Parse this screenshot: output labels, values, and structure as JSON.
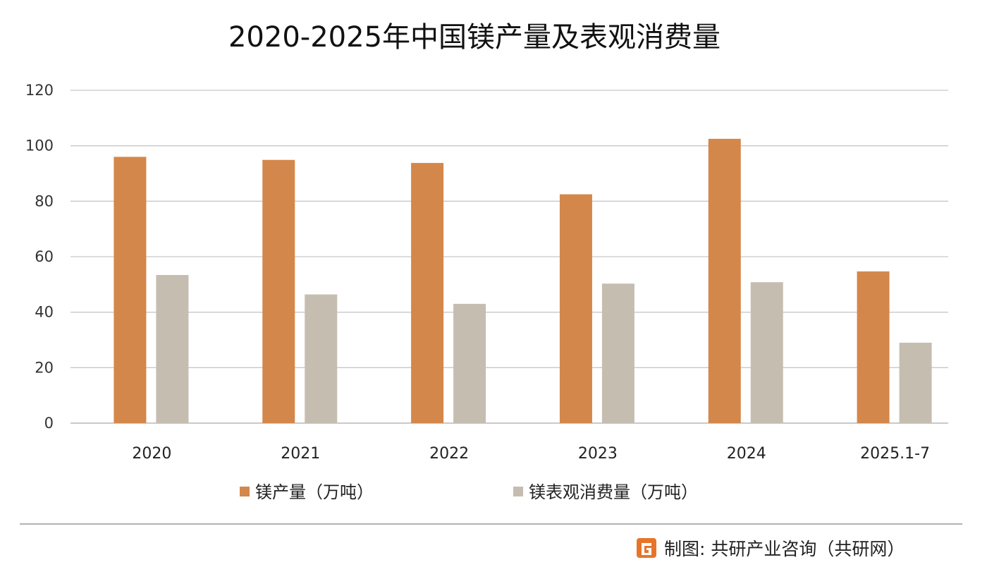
{
  "chart_data": {
    "type": "bar",
    "title": "2020-2025年中国镁产量及表观消费量",
    "categories": [
      "2020",
      "2021",
      "2022",
      "2023",
      "2024",
      "2025.1-7"
    ],
    "series": [
      {
        "name": "镁产量（万吨）",
        "color": "#D4874A",
        "values": [
          96.0,
          94.9,
          93.8,
          82.5,
          102.5,
          54.7
        ]
      },
      {
        "name": "镁表观消费量（万吨）",
        "color": "#C6BDB1",
        "values": [
          53.4,
          46.4,
          43.0,
          50.3,
          50.8,
          29.0
        ]
      }
    ],
    "ylim": [
      0,
      120
    ],
    "yticks": [
      0,
      20,
      40,
      60,
      80,
      100,
      120
    ],
    "grid": true,
    "legend": "bottom-center",
    "xlabel": "",
    "ylabel": ""
  },
  "source": {
    "label": "制图: 共研产业咨询（共研网）",
    "logo_color": "#E8742A"
  }
}
